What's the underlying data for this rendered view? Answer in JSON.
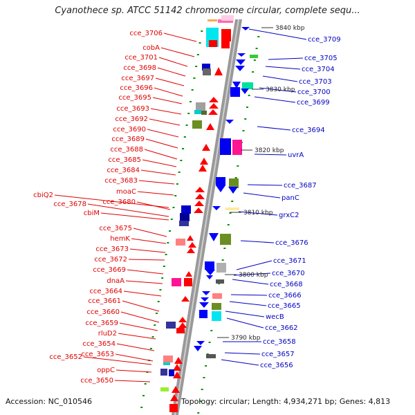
{
  "header": {
    "title": "Cyanothece sp. ATCC 51142 chromosome circular, complete sequ..."
  },
  "footer": {
    "accession": "Accession: NC_010546",
    "topology": "Topology: circular; Length: 4,934,271 bp; Genes: 4,813"
  },
  "colors": {
    "left_label": "#e00000",
    "right_label": "#0000c0",
    "axis": "#909090",
    "tick": "#009000"
  },
  "scale_labels": [
    "3840 kbp",
    "3830 kbp",
    "3820 kbp",
    "3810 kbp",
    "3800 kbp",
    "3790 kbp"
  ],
  "left_genes": [
    "cce_3706",
    "cobA",
    "cce_3701",
    "cce_3698",
    "cce_3697",
    "cce_3696",
    "cce_3695",
    "cce_3693",
    "cce_3692",
    "cce_3690",
    "cce_3689",
    "cce_3688",
    "cce_3685",
    "cce_3684",
    "cce_3683",
    "moaC",
    "cbiQ2",
    "cce_3680",
    "cce_3678",
    "cbiM",
    "cce_3675",
    "hemK",
    "cce_3673",
    "cce_3672",
    "cce_3669",
    "dnaA",
    "cce_3664",
    "cce_3661",
    "cce_3660",
    "cce_3659",
    "rluD2",
    "cce_3654",
    "cce_3653",
    "cce_3652",
    "oppC",
    "cce_3650"
  ],
  "right_genes": [
    "cce_3709",
    "cce_3705",
    "cce_3704",
    "cce_3703",
    "cce_3700",
    "cce_3699",
    "cce_3694",
    "uvrA",
    "cce_3687",
    "panC",
    "grxC2",
    "cce_3676",
    "cce_3671",
    "cce_3670",
    "cce_3668",
    "cce_3666",
    "cce_3665",
    "wecB",
    "cce_3662",
    "cce_3658",
    "cce_3657",
    "cce_3656"
  ]
}
